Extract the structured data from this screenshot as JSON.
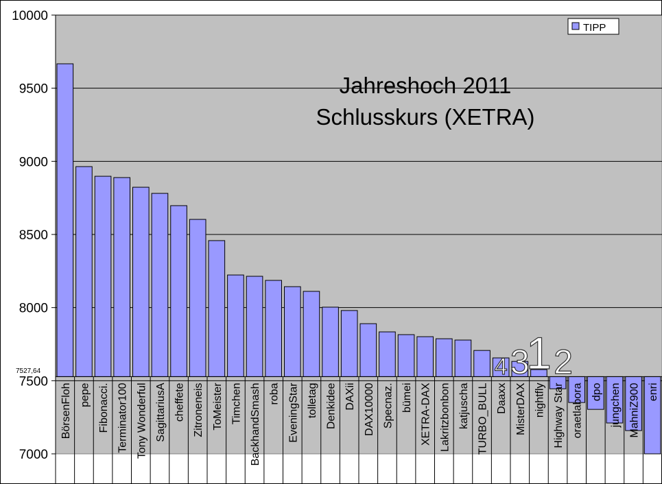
{
  "chart_data": {
    "type": "bar",
    "title_lines": [
      "Jahreshoch 2011",
      "Schlusskurs (XETRA)"
    ],
    "xlabel": "",
    "ylabel": "",
    "ylim": [
      7000,
      10000
    ],
    "yticks": [
      "7000",
      "7500",
      "8000",
      "8500",
      "9000",
      "9500",
      "10000"
    ],
    "baseline": 7527.64,
    "baseline_label": "7527,64",
    "grid": true,
    "legend": {
      "position": "top-right",
      "entries": [
        "TIPP"
      ]
    },
    "colors": {
      "bar": "#9999ff",
      "plot_bg": "#c0c0c0",
      "grid": "#000000"
    },
    "categories": [
      "BörsenFloh",
      "pepe",
      "Fibonacci.",
      "Terminator100",
      "Tony Wonderful",
      "SagittariusA",
      "cheffete",
      "Zitroneneis",
      "ToMeister",
      "Timchen",
      "BackhandSmash",
      "roba",
      "EveningStar",
      "tolletag",
      "Denkidee",
      "DAXii",
      "DAX10000",
      "Specnaz.",
      "bümei",
      "XETRA-DAX",
      "Lakritzbonbon",
      "katjuscha",
      "TURBO_BULL",
      "Daaxx",
      "MisterDAX",
      "nightfly",
      "Highway Star",
      "oraetlabora",
      "dpo",
      "jungchen",
      "MahniZ900",
      "enri"
    ],
    "series": [
      {
        "name": "TIPP",
        "values": [
          9667,
          8964,
          8898,
          8889,
          8823,
          8781,
          8697,
          8603,
          8458,
          8223,
          8214,
          8186,
          8143,
          8111,
          8003,
          7980,
          7890,
          7834,
          7815,
          7801,
          7787,
          7778,
          7707,
          7656,
          7632,
          7576,
          7445,
          7351,
          7304,
          7211,
          7159,
          7000
        ]
      }
    ],
    "annotations": [
      {
        "text": "4",
        "category": "Daaxx"
      },
      {
        "text": "3",
        "category": "MisterDAX"
      },
      {
        "text": "1",
        "category": "nightfly"
      },
      {
        "text": "2",
        "category": "Highway Star"
      }
    ]
  }
}
